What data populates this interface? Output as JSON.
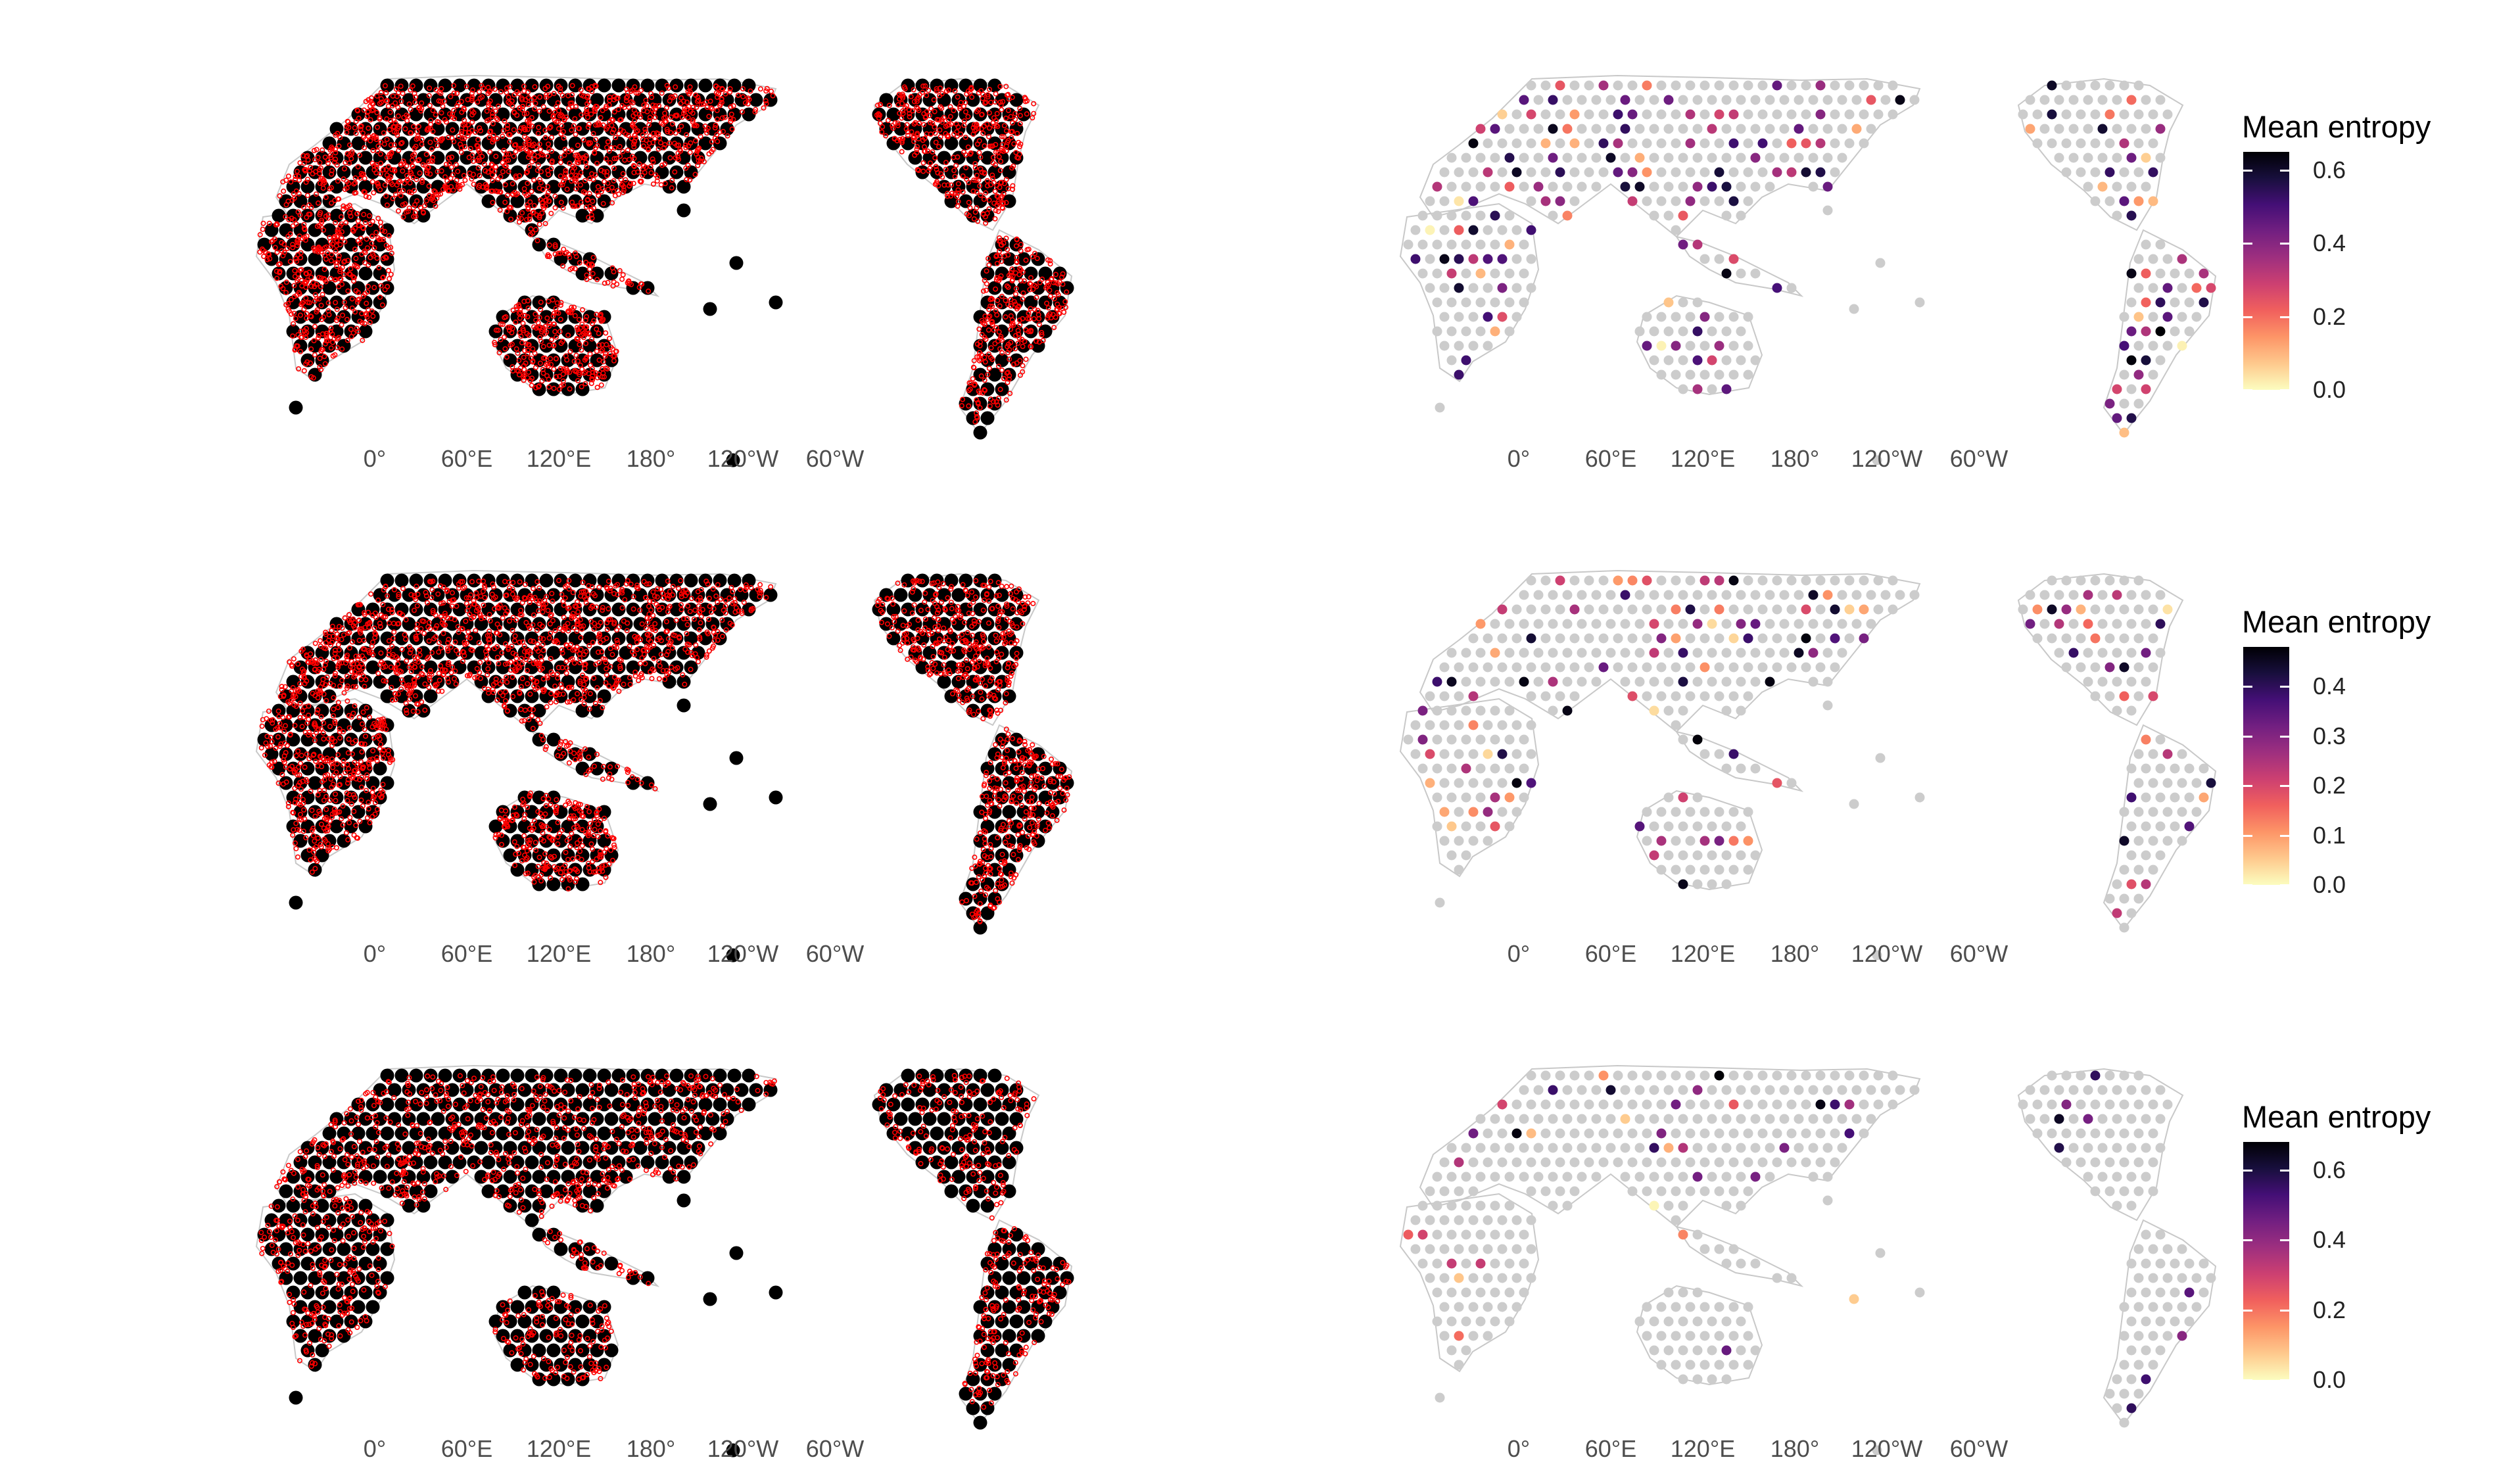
{
  "figure": {
    "rows": 3,
    "columns": 2,
    "longitude_tick_labels": [
      "0°",
      "60°E",
      "120°E",
      "180°",
      "120°W",
      "60°W"
    ]
  },
  "colors": {
    "land_outline": "#c8c8c8",
    "grid_point_neutral": "#cccccc",
    "grid_point_occupied": "#000000",
    "occurrence_marker": "#ff0000",
    "colormap": [
      "#fcfdbf",
      "#fec98d",
      "#fd9567",
      "#f1605d",
      "#cd4071",
      "#9e2f7f",
      "#721f81",
      "#440f76",
      "#180f3d",
      "#000004"
    ]
  },
  "rows": [
    {
      "left_map": {
        "name": "occurrence-map-1",
        "occurrence_density": 1.0
      },
      "right_map": {
        "name": "entropy-map-1",
        "legend": {
          "title": "Mean entropy",
          "min": 0.0,
          "max": 0.65,
          "ticks": [
            0.0,
            0.2,
            0.4,
            0.6
          ],
          "tick_labels": [
            "0.0",
            "0.2",
            "0.4",
            "0.6"
          ]
        }
      }
    },
    {
      "left_map": {
        "name": "occurrence-map-2",
        "occurrence_density": 0.9
      },
      "right_map": {
        "name": "entropy-map-2",
        "legend": {
          "title": "Mean entropy",
          "min": 0.0,
          "max": 0.48,
          "ticks": [
            0.0,
            0.1,
            0.2,
            0.3,
            0.4
          ],
          "tick_labels": [
            "0.0",
            "0.1",
            "0.2",
            "0.3",
            "0.4"
          ]
        }
      }
    },
    {
      "left_map": {
        "name": "occurrence-map-3",
        "occurrence_density": 0.55
      },
      "right_map": {
        "name": "entropy-map-3",
        "legend": {
          "title": "Mean entropy",
          "min": 0.0,
          "max": 0.68,
          "ticks": [
            0.0,
            0.2,
            0.4,
            0.6
          ],
          "tick_labels": [
            "0.0",
            "0.2",
            "0.4",
            "0.6"
          ]
        }
      }
    }
  ]
}
